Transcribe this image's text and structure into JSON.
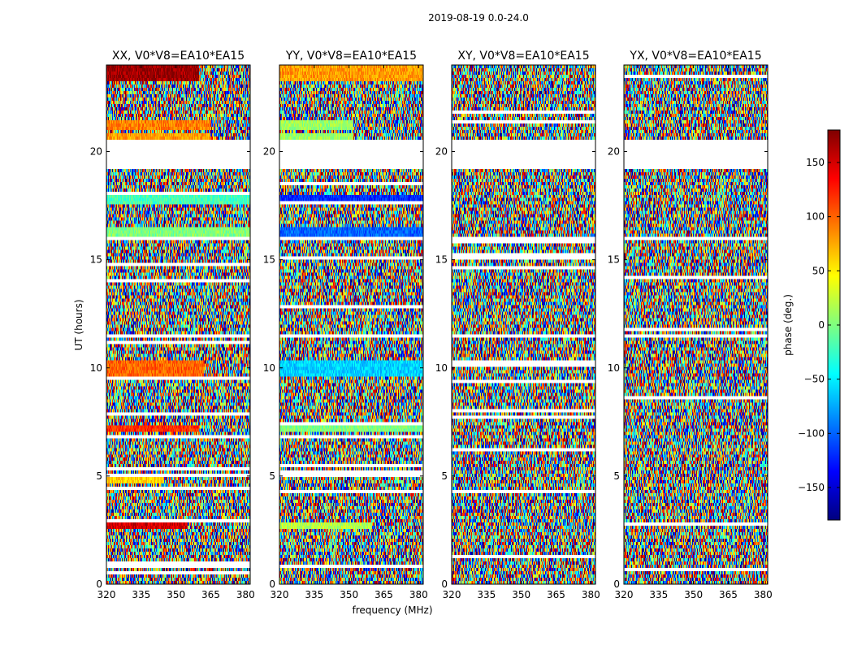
{
  "figure": {
    "suptitle": "2019-08-19 0.0-24.0",
    "xlabel": "frequency (MHz)",
    "ylabel": "UT (hours)",
    "colorbar_label": "phase (deg.)",
    "colorbar_ticks": [
      "150",
      "100",
      "50",
      "0",
      "−50",
      "−100",
      "−150"
    ],
    "colorbar_tick_values": [
      150,
      100,
      50,
      0,
      -50,
      -100,
      -150
    ],
    "colorbar_range": [
      -180,
      180
    ],
    "colormap": [
      "#00007f",
      "#0000ff",
      "#007fff",
      "#00ffff",
      "#7fff7f",
      "#ffff00",
      "#ff7f00",
      "#ff0000",
      "#7f0000"
    ],
    "x_ticks": [
      "320",
      "335",
      "350",
      "365",
      "380"
    ],
    "x_tick_values": [
      320,
      335,
      350,
      365,
      380
    ],
    "y_ticks": [
      "0",
      "5",
      "10",
      "15",
      "20"
    ],
    "y_tick_values": [
      0,
      5,
      10,
      15,
      20
    ]
  },
  "chart_data": {
    "type": "heatmap",
    "title": "2019-08-19 0.0-24.0",
    "xlabel": "frequency (MHz)",
    "ylabel": "UT (hours)",
    "zlabel": "phase (deg.)",
    "xlim": [
      320,
      382
    ],
    "ylim": [
      0,
      24
    ],
    "zlim": [
      -180,
      180
    ],
    "flagged_ut_ranges": [
      [
        19.2,
        20.6
      ],
      [
        16.0,
        15.9
      ],
      [
        11.5,
        11.4
      ]
    ],
    "panels": [
      {
        "title": "XX, V0*V8=EA10*EA15",
        "coherent_bands": [
          {
            "ut": [
              23.3,
              24.0
            ],
            "phase": 170,
            "f_end": 360
          },
          {
            "ut": [
              21.0,
              21.4
            ],
            "phase": 90,
            "f_end": 365
          },
          {
            "ut": [
              20.6,
              20.9
            ],
            "phase": 80,
            "f_end": 365
          },
          {
            "ut": [
              17.5,
              18.0
            ],
            "phase": -20,
            "f_end": 382
          },
          {
            "ut": [
              15.9,
              16.5
            ],
            "phase": 0,
            "f_end": 382
          },
          {
            "ut": [
              9.6,
              10.3
            ],
            "phase": 100,
            "f_end": 362
          },
          {
            "ut": [
              7.1,
              7.3
            ],
            "phase": 120,
            "f_end": 360
          },
          {
            "ut": [
              2.6,
              2.9
            ],
            "phase": 150,
            "f_end": 355
          },
          {
            "ut": [
              4.6,
              5.0
            ],
            "phase": 60,
            "f_end": 345
          }
        ]
      },
      {
        "title": "YY, V0*V8=EA10*EA15",
        "coherent_bands": [
          {
            "ut": [
              23.3,
              24.0
            ],
            "phase": 80,
            "f_end": 382
          },
          {
            "ut": [
              21.0,
              21.4
            ],
            "phase": 10,
            "f_end": 352
          },
          {
            "ut": [
              20.6,
              20.9
            ],
            "phase": 10,
            "f_end": 352
          },
          {
            "ut": [
              17.5,
              18.0
            ],
            "phase": -120,
            "f_end": 382
          },
          {
            "ut": [
              15.9,
              16.5
            ],
            "phase": -100,
            "f_end": 382
          },
          {
            "ut": [
              9.6,
              10.3
            ],
            "phase": -60,
            "f_end": 382
          },
          {
            "ut": [
              7.1,
              7.3
            ],
            "phase": 0,
            "f_end": 382
          },
          {
            "ut": [
              2.6,
              2.9
            ],
            "phase": 20,
            "f_end": 360
          }
        ]
      },
      {
        "title": "XY, V0*V8=EA10*EA15",
        "coherent_bands": []
      },
      {
        "title": "YX, V0*V8=EA10*EA15",
        "coherent_bands": []
      }
    ]
  }
}
